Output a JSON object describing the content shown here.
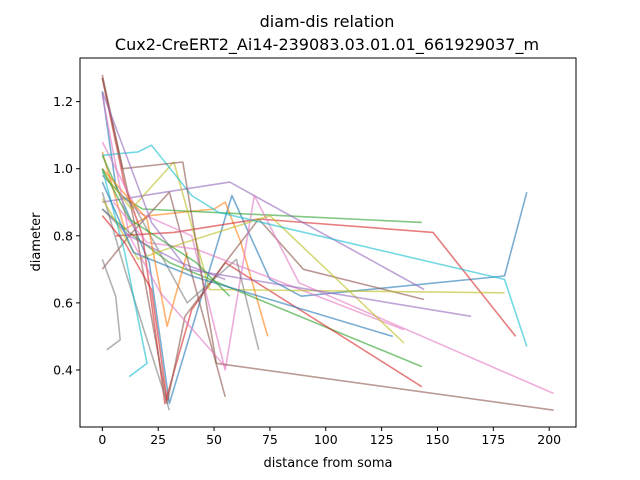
{
  "chart_data": {
    "type": "line",
    "title": "diam-dis relation",
    "subtitle": "Cux2-CreERT2_Ai14-239083.03.01.01_661929037_m",
    "xlabel": "distance from soma",
    "ylabel": "diameter",
    "xlim": [
      -10,
      212
    ],
    "ylim": [
      0.23,
      1.33
    ],
    "xticks": [
      0,
      25,
      50,
      75,
      100,
      125,
      150,
      175,
      200
    ],
    "yticks": [
      0.4,
      0.6,
      0.8,
      1.0,
      1.2
    ],
    "xtick_labels": [
      "0",
      "25",
      "50",
      "75",
      "100",
      "125",
      "150",
      "175",
      "200"
    ],
    "ytick_labels": [
      "0.4",
      "0.6",
      "0.8",
      "1.0",
      "1.2"
    ],
    "grid": false,
    "legend": "none",
    "line_alpha": 0.6,
    "series": [
      {
        "color": "#1f77b4",
        "x": [
          0,
          6,
          21,
          30,
          58,
          75,
          89,
          180,
          190
        ],
        "y": [
          1.23,
          0.95,
          0.72,
          0.3,
          0.92,
          0.67,
          0.62,
          0.68,
          0.93
        ]
      },
      {
        "color": "#ff7f0e",
        "x": [
          0,
          10,
          21,
          50,
          55,
          62,
          74
        ],
        "y": [
          1.05,
          0.82,
          0.86,
          0.88,
          0.9,
          0.78,
          0.5
        ]
      },
      {
        "color": "#2ca02c",
        "x": [
          0,
          8,
          18,
          143
        ],
        "y": [
          1.04,
          0.92,
          0.88,
          0.84
        ]
      },
      {
        "color": "#2ca02c",
        "x": [
          0,
          12,
          30,
          143
        ],
        "y": [
          0.88,
          0.81,
          0.72,
          0.41
        ]
      },
      {
        "color": "#d62728",
        "x": [
          0,
          10,
          18,
          28,
          40,
          55,
          143
        ],
        "y": [
          1.27,
          0.95,
          0.8,
          0.3,
          0.58,
          0.72,
          0.35
        ]
      },
      {
        "color": "#d62728",
        "x": [
          6,
          32,
          70,
          148,
          185
        ],
        "y": [
          0.8,
          0.81,
          0.85,
          0.81,
          0.5
        ]
      },
      {
        "color": "#9467bd",
        "x": [
          0,
          28,
          57,
          144
        ],
        "y": [
          0.9,
          0.93,
          0.96,
          0.64
        ]
      },
      {
        "color": "#9467bd",
        "x": [
          0,
          12,
          35,
          55
        ],
        "y": [
          0.88,
          0.8,
          0.72,
          0.67
        ]
      },
      {
        "color": "#8c564b",
        "x": [
          0,
          14,
          29,
          37,
          55,
          70,
          90,
          144
        ],
        "y": [
          1.28,
          0.85,
          0.3,
          0.56,
          0.72,
          0.85,
          0.7,
          0.61
        ]
      },
      {
        "color": "#8c564b",
        "x": [
          0,
          12,
          30,
          55
        ],
        "y": [
          0.7,
          0.8,
          0.93,
          0.32
        ]
      },
      {
        "color": "#e377c2",
        "x": [
          0,
          16,
          40,
          55,
          68,
          88,
          202
        ],
        "y": [
          1.08,
          0.87,
          0.8,
          0.4,
          0.92,
          0.66,
          0.33
        ]
      },
      {
        "color": "#e377c2",
        "x": [
          5,
          20,
          42,
          135
        ],
        "y": [
          0.9,
          0.78,
          0.76,
          0.52
        ]
      },
      {
        "color": "#7f7f7f",
        "x": [
          0,
          15,
          38,
          60,
          70
        ],
        "y": [
          0.98,
          0.88,
          0.6,
          0.73,
          0.46
        ]
      },
      {
        "color": "#7f7f7f",
        "x": [
          0,
          10,
          30
        ],
        "y": [
          0.93,
          0.7,
          0.28
        ]
      },
      {
        "color": "#bcbd22",
        "x": [
          0,
          13,
          32,
          48,
          180
        ],
        "y": [
          0.99,
          0.88,
          1.02,
          0.64,
          0.63
        ]
      },
      {
        "color": "#bcbd22",
        "x": [
          0,
          16,
          37,
          75,
          135
        ],
        "y": [
          0.91,
          0.73,
          0.78,
          0.86,
          0.48
        ]
      },
      {
        "color": "#17becf",
        "x": [
          0,
          16,
          22,
          40,
          52,
          180,
          190
        ],
        "y": [
          1.04,
          1.05,
          1.07,
          0.92,
          0.87,
          0.67,
          0.47
        ]
      },
      {
        "color": "#17becf",
        "x": [
          0,
          10,
          20,
          12
        ],
        "y": [
          1.0,
          0.75,
          0.42,
          0.38
        ]
      },
      {
        "color": "#1f77b4",
        "x": [
          0,
          14,
          40,
          130
        ],
        "y": [
          0.96,
          0.75,
          0.68,
          0.5
        ]
      },
      {
        "color": "#ff7f0e",
        "x": [
          0,
          20,
          29,
          38
        ],
        "y": [
          1.0,
          0.85,
          0.53,
          0.75
        ]
      },
      {
        "color": "#8c564b",
        "x": [
          0,
          9,
          36,
          51,
          202
        ],
        "y": [
          1.27,
          1.0,
          1.02,
          0.42,
          0.28
        ]
      },
      {
        "color": "#9467bd",
        "x": [
          0,
          22,
          38,
          165
        ],
        "y": [
          1.23,
          0.84,
          0.7,
          0.56
        ]
      },
      {
        "color": "#e377c2",
        "x": [
          0,
          12,
          26,
          55
        ],
        "y": [
          1.22,
          0.8,
          0.63,
          0.41
        ]
      },
      {
        "color": "#2ca02c",
        "x": [
          0,
          12,
          42,
          57
        ],
        "y": [
          1.0,
          0.85,
          0.72,
          0.62
        ]
      },
      {
        "color": "#7f7f7f",
        "x": [
          0,
          6,
          8,
          2
        ],
        "y": [
          0.73,
          0.62,
          0.49,
          0.46
        ]
      },
      {
        "color": "#d62728",
        "x": [
          0,
          10,
          22,
          29
        ],
        "y": [
          0.86,
          0.78,
          0.64,
          0.31
        ]
      }
    ]
  }
}
